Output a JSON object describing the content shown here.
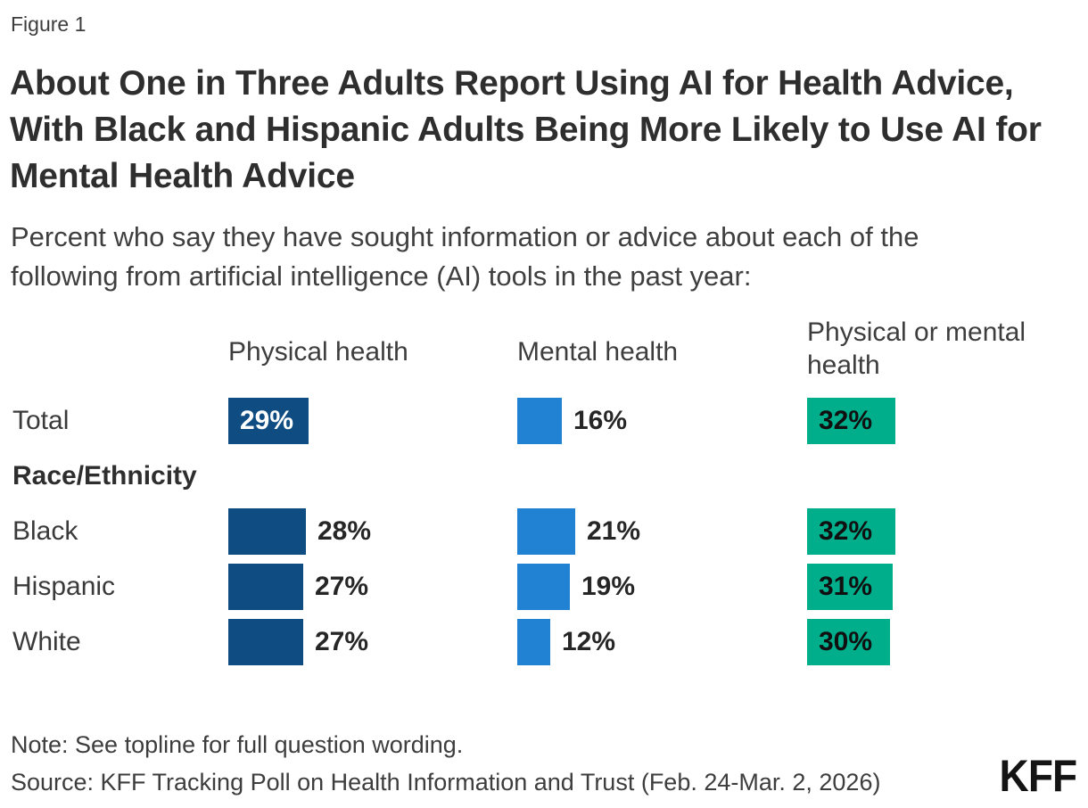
{
  "figure_label": "Figure 1",
  "title": "About One in Three Adults Report Using AI for Health Advice, With Black and Hispanic Adults Being More Likely to Use AI for Mental Health Advice",
  "subtitle": "Percent who say they have sought information or advice about each of the following from artificial intelligence (AI) tools in the past year:",
  "note": "Note: See topline for full question wording.",
  "source": "Source: KFF Tracking Poll on Health Information and Trust (Feb. 24-Mar. 2, 2026)",
  "logo_text": "KFF",
  "colors": {
    "navy": "#0e4c81",
    "blue": "#2181d3",
    "green": "#00ae8c",
    "title_text": "#2e2e2e",
    "body_text": "#3d3d3d",
    "value_text": "#262626"
  },
  "chart_data": {
    "type": "bar",
    "orientation": "horizontal",
    "value_unit": "%",
    "categories": [
      "Total",
      "Black",
      "Hispanic",
      "White"
    ],
    "section_header": {
      "label": "Race/Ethnicity",
      "before_category": "Black"
    },
    "series": [
      {
        "name": "Physical health",
        "color_key": "navy",
        "values": [
          29,
          28,
          27,
          27
        ]
      },
      {
        "name": "Mental health",
        "color_key": "blue",
        "values": [
          16,
          21,
          19,
          12
        ]
      },
      {
        "name": "Physical or mental health",
        "color_key": "green",
        "values": [
          32,
          32,
          31,
          30
        ]
      }
    ],
    "xlim": [
      0,
      100
    ],
    "grid": false,
    "legend": "column-headers",
    "value_labels": "at-bar-end"
  }
}
